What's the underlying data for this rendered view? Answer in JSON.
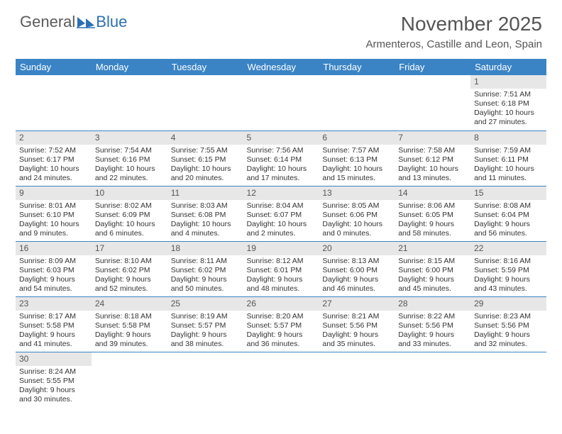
{
  "logo": {
    "part1": "General",
    "part2": "Blue"
  },
  "title": "November 2025",
  "subtitle": "Armenteros, Castille and Leon, Spain",
  "colors": {
    "header_bg": "#3a84c5",
    "header_text": "#ffffff",
    "daynum_bg": "#e7e7e7",
    "cell_border": "#3a84c5",
    "page_bg": "#ffffff",
    "logo_gray": "#5a5a5a",
    "logo_blue": "#2b6fb5"
  },
  "days": [
    "Sunday",
    "Monday",
    "Tuesday",
    "Wednesday",
    "Thursday",
    "Friday",
    "Saturday"
  ],
  "weeks": [
    [
      null,
      null,
      null,
      null,
      null,
      null,
      {
        "n": "1",
        "sr": "7:51 AM",
        "ss": "6:18 PM",
        "dl": "10 hours and 27 minutes."
      }
    ],
    [
      {
        "n": "2",
        "sr": "7:52 AM",
        "ss": "6:17 PM",
        "dl": "10 hours and 24 minutes."
      },
      {
        "n": "3",
        "sr": "7:54 AM",
        "ss": "6:16 PM",
        "dl": "10 hours and 22 minutes."
      },
      {
        "n": "4",
        "sr": "7:55 AM",
        "ss": "6:15 PM",
        "dl": "10 hours and 20 minutes."
      },
      {
        "n": "5",
        "sr": "7:56 AM",
        "ss": "6:14 PM",
        "dl": "10 hours and 17 minutes."
      },
      {
        "n": "6",
        "sr": "7:57 AM",
        "ss": "6:13 PM",
        "dl": "10 hours and 15 minutes."
      },
      {
        "n": "7",
        "sr": "7:58 AM",
        "ss": "6:12 PM",
        "dl": "10 hours and 13 minutes."
      },
      {
        "n": "8",
        "sr": "7:59 AM",
        "ss": "6:11 PM",
        "dl": "10 hours and 11 minutes."
      }
    ],
    [
      {
        "n": "9",
        "sr": "8:01 AM",
        "ss": "6:10 PM",
        "dl": "10 hours and 9 minutes."
      },
      {
        "n": "10",
        "sr": "8:02 AM",
        "ss": "6:09 PM",
        "dl": "10 hours and 6 minutes."
      },
      {
        "n": "11",
        "sr": "8:03 AM",
        "ss": "6:08 PM",
        "dl": "10 hours and 4 minutes."
      },
      {
        "n": "12",
        "sr": "8:04 AM",
        "ss": "6:07 PM",
        "dl": "10 hours and 2 minutes."
      },
      {
        "n": "13",
        "sr": "8:05 AM",
        "ss": "6:06 PM",
        "dl": "10 hours and 0 minutes."
      },
      {
        "n": "14",
        "sr": "8:06 AM",
        "ss": "6:05 PM",
        "dl": "9 hours and 58 minutes."
      },
      {
        "n": "15",
        "sr": "8:08 AM",
        "ss": "6:04 PM",
        "dl": "9 hours and 56 minutes."
      }
    ],
    [
      {
        "n": "16",
        "sr": "8:09 AM",
        "ss": "6:03 PM",
        "dl": "9 hours and 54 minutes."
      },
      {
        "n": "17",
        "sr": "8:10 AM",
        "ss": "6:02 PM",
        "dl": "9 hours and 52 minutes."
      },
      {
        "n": "18",
        "sr": "8:11 AM",
        "ss": "6:02 PM",
        "dl": "9 hours and 50 minutes."
      },
      {
        "n": "19",
        "sr": "8:12 AM",
        "ss": "6:01 PM",
        "dl": "9 hours and 48 minutes."
      },
      {
        "n": "20",
        "sr": "8:13 AM",
        "ss": "6:00 PM",
        "dl": "9 hours and 46 minutes."
      },
      {
        "n": "21",
        "sr": "8:15 AM",
        "ss": "6:00 PM",
        "dl": "9 hours and 45 minutes."
      },
      {
        "n": "22",
        "sr": "8:16 AM",
        "ss": "5:59 PM",
        "dl": "9 hours and 43 minutes."
      }
    ],
    [
      {
        "n": "23",
        "sr": "8:17 AM",
        "ss": "5:58 PM",
        "dl": "9 hours and 41 minutes."
      },
      {
        "n": "24",
        "sr": "8:18 AM",
        "ss": "5:58 PM",
        "dl": "9 hours and 39 minutes."
      },
      {
        "n": "25",
        "sr": "8:19 AM",
        "ss": "5:57 PM",
        "dl": "9 hours and 38 minutes."
      },
      {
        "n": "26",
        "sr": "8:20 AM",
        "ss": "5:57 PM",
        "dl": "9 hours and 36 minutes."
      },
      {
        "n": "27",
        "sr": "8:21 AM",
        "ss": "5:56 PM",
        "dl": "9 hours and 35 minutes."
      },
      {
        "n": "28",
        "sr": "8:22 AM",
        "ss": "5:56 PM",
        "dl": "9 hours and 33 minutes."
      },
      {
        "n": "29",
        "sr": "8:23 AM",
        "ss": "5:56 PM",
        "dl": "9 hours and 32 minutes."
      }
    ],
    [
      {
        "n": "30",
        "sr": "8:24 AM",
        "ss": "5:55 PM",
        "dl": "9 hours and 30 minutes."
      },
      null,
      null,
      null,
      null,
      null,
      null
    ]
  ],
  "labels": {
    "sunrise": "Sunrise:",
    "sunset": "Sunset:",
    "daylight": "Daylight:"
  }
}
